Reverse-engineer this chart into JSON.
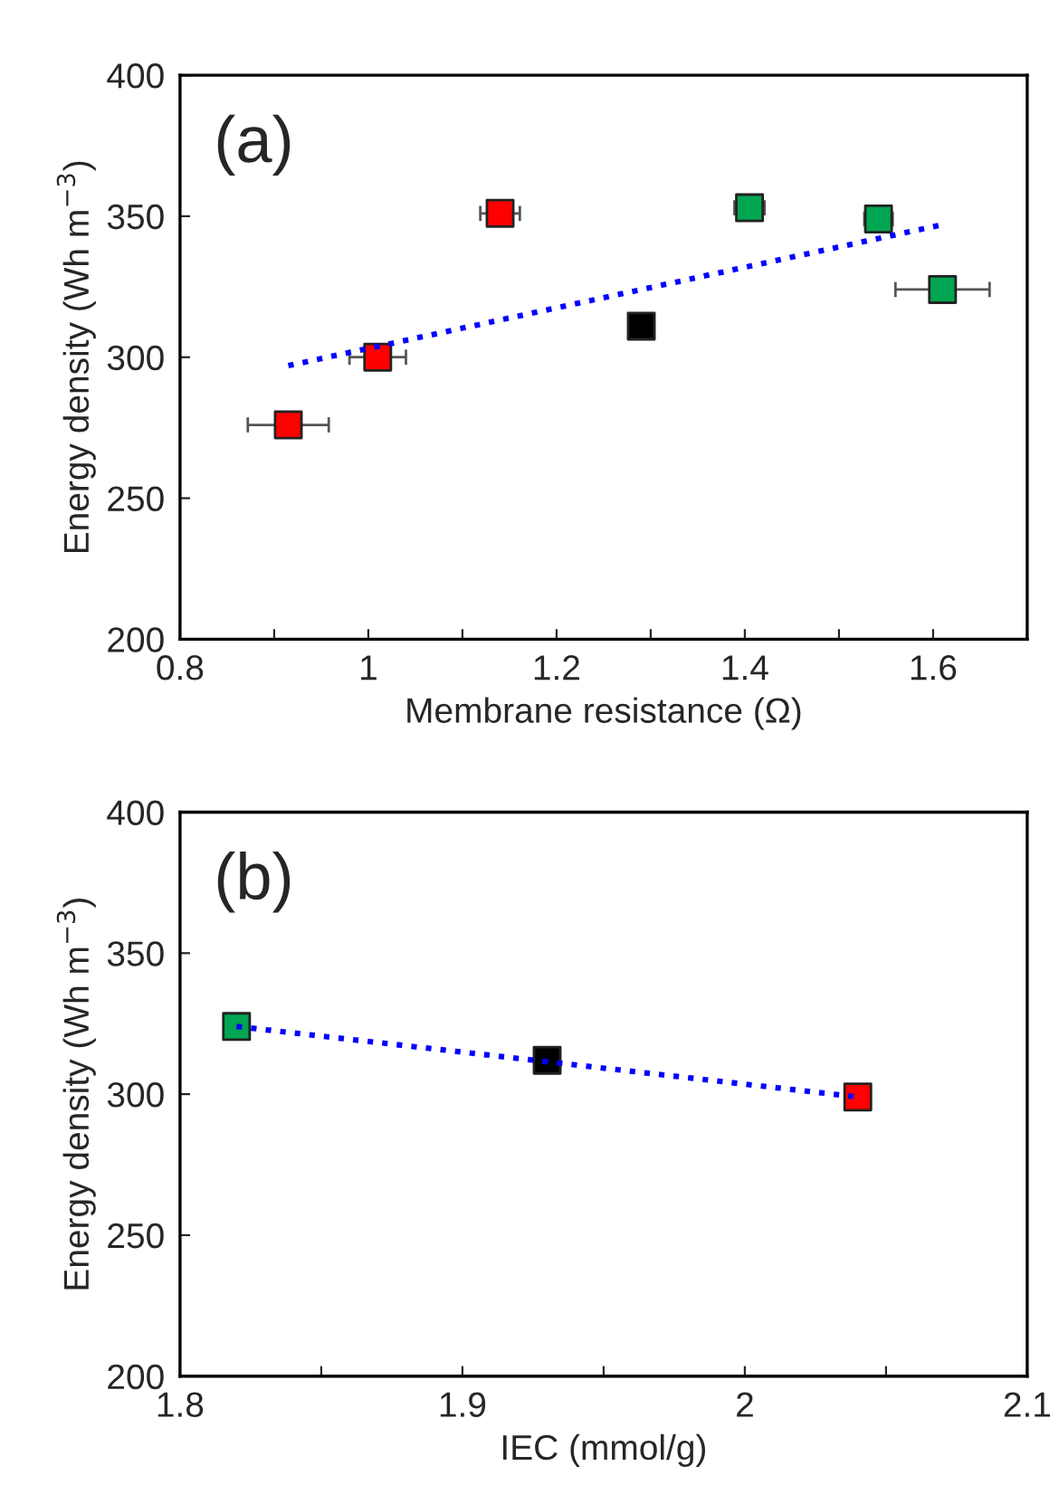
{
  "chart_data": [
    {
      "type": "scatter",
      "title": "(a)",
      "xlabel": "Membrane resistance (Ω)",
      "ylabel": "Energy density (Wh m$^{−3}$)",
      "xlim": [
        0.8,
        1.7
      ],
      "xticks": [
        0.8,
        {
          "value": 0.9,
          "label": null
        },
        {
          "value": 1.0,
          "label": "1"
        },
        {
          "value": 1.1,
          "label": null
        },
        1.2,
        {
          "value": 1.3,
          "label": null
        },
        1.4,
        {
          "value": 1.5,
          "label": null
        },
        1.6,
        {
          "value": 1.7,
          "label": null
        }
      ],
      "ylim": [
        200,
        400
      ],
      "yticks": [
        200,
        250,
        300,
        350,
        400
      ],
      "grid": false,
      "legend": false,
      "marker": "square",
      "series": [
        {
          "x": [
            0.915,
            1.01,
            1.14,
            1.29,
            1.405,
            1.542,
            1.61
          ],
          "values": [
            276,
            300,
            351,
            311,
            353,
            349,
            324
          ],
          "colors": [
            "#ff0000",
            "#ff0000",
            "#ff0000",
            "#000000",
            "#00a651",
            "#00a651",
            "#00a651"
          ],
          "xerrors": [
            0.043,
            0.03,
            0.021,
            null,
            0.016,
            0.015,
            0.05
          ]
        },
        {
          "type": "line",
          "x": [
            0.915,
            1.61
          ],
          "values": [
            297,
            347
          ],
          "color": "#0000ff",
          "line_style": "dotted",
          "marker": "none"
        }
      ]
    },
    {
      "type": "scatter",
      "title": "(b)",
      "xlabel": "IEC (mmol/g)",
      "ylabel": "Energy density (Wh m$^{−3}$)",
      "xlim": [
        1.8,
        2.1
      ],
      "xticks": [
        1.8,
        {
          "value": 1.85,
          "label": null
        },
        1.9,
        {
          "value": 1.95,
          "label": null
        },
        {
          "value": 2.0,
          "label": "2"
        },
        {
          "value": 2.05,
          "label": null
        },
        2.1
      ],
      "ylim": [
        200,
        400
      ],
      "yticks": [
        200,
        250,
        300,
        350,
        400
      ],
      "grid": false,
      "legend": false,
      "marker": "square",
      "series": [
        {
          "x": [
            1.82,
            1.93,
            2.04
          ],
          "values": [
            324,
            312,
            299
          ],
          "colors": [
            "#00a651",
            "#000000",
            "#ff0000"
          ]
        },
        {
          "type": "line",
          "x": [
            1.82,
            2.04
          ],
          "values": [
            324,
            299
          ],
          "color": "#0000ff",
          "line_style": "dotted",
          "marker": "none"
        }
      ]
    }
  ]
}
